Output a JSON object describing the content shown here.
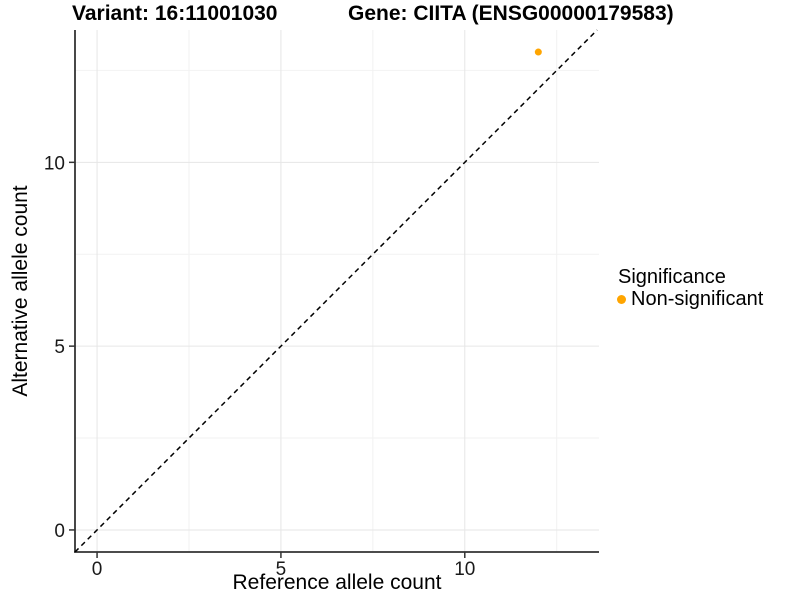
{
  "header": {
    "variant_title": "Variant: 16:11001030",
    "gene_title": "Gene: CIITA (ENSG00000179583)"
  },
  "legend": {
    "title": "Significance",
    "items": [
      {
        "label": "Non-significant",
        "color": "#FFA500"
      }
    ]
  },
  "colors": {
    "grid_major": "#E6E6E6",
    "grid_minor": "#F2F2F2",
    "axis_line": "#333333",
    "tick_label": "#1a1a1a",
    "reference_line": "#000000"
  },
  "chart_data": {
    "type": "scatter",
    "title": "Variant: 16:11001030 | Gene: CIITA (ENSG00000179583)",
    "xlabel": "Reference allele count",
    "ylabel": "Alternative allele count",
    "xlim": [
      -0.6,
      13.65
    ],
    "ylim": [
      -0.6,
      13.6
    ],
    "x_ticks": [
      0,
      5,
      10
    ],
    "y_ticks": [
      0,
      5,
      10
    ],
    "x_minor_ticks": [
      2.5,
      7.5,
      12.5
    ],
    "y_minor_ticks": [
      2.5,
      7.5,
      12.5
    ],
    "grid": true,
    "legend_position": "right",
    "series": [
      {
        "name": "Non-significant",
        "color": "#FFA500",
        "points": [
          {
            "x": 12,
            "y": 13
          }
        ]
      }
    ],
    "reference_line": {
      "slope": 1,
      "intercept": 0,
      "style": "dashed",
      "color": "#000000",
      "note": "identity line y = x"
    }
  }
}
